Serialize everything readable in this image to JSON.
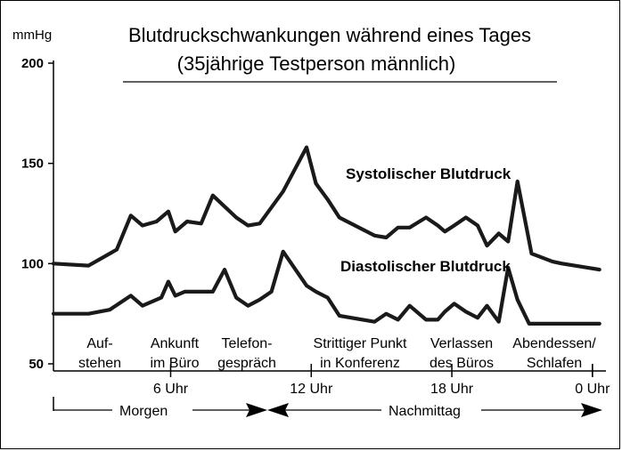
{
  "chart_data": {
    "type": "line",
    "title": "Blutdruckschwankungen während eines Tages",
    "subtitle": "(35jährige Testperson männlich)",
    "ylabel": "mmHg",
    "ylim": [
      50,
      200
    ],
    "yticks": [
      50,
      100,
      150,
      200
    ],
    "yticklabels": [
      "50",
      "100",
      "150",
      "200"
    ],
    "xlim": [
      1.0,
      24.5
    ],
    "xticks": [
      6,
      12,
      18,
      24
    ],
    "xticklabels": [
      "6 Uhr",
      "12 Uhr",
      "18 Uhr",
      "0 Uhr"
    ],
    "grid": false,
    "series": [
      {
        "name": "Systolischer Blutdruck",
        "color": "#1a1a1a",
        "x": [
          1.0,
          2.5,
          3.7,
          4.3,
          4.8,
          5.4,
          5.9,
          6.2,
          6.7,
          7.3,
          7.8,
          8.8,
          9.3,
          9.8,
          10.3,
          10.8,
          11.8,
          12.2,
          12.7,
          13.2,
          14.7,
          15.2,
          15.7,
          16.2,
          16.9,
          17.4,
          17.7,
          18.1,
          18.6,
          19.1,
          19.5,
          20.0,
          20.4,
          20.8,
          21.4,
          22.3,
          22.7,
          24.3
        ],
        "y": [
          100,
          99,
          107,
          124,
          119,
          121,
          126,
          116,
          121,
          120,
          134,
          123,
          119,
          120,
          128,
          136,
          158,
          140,
          132,
          123,
          114,
          113,
          118,
          118,
          123,
          119,
          116,
          119,
          123,
          119,
          109,
          115,
          111,
          141,
          105,
          101,
          100,
          97
        ]
      },
      {
        "name": "Diastolischer Blutdruck",
        "color": "#1a1a1a",
        "x": [
          1.0,
          2.5,
          3.4,
          4.3,
          4.8,
          5.6,
          5.9,
          6.2,
          6.6,
          7.2,
          7.8,
          8.3,
          8.8,
          9.3,
          9.8,
          10.3,
          10.8,
          11.8,
          12.2,
          12.7,
          13.2,
          14.7,
          15.2,
          15.7,
          16.2,
          16.9,
          17.4,
          17.7,
          18.1,
          18.6,
          19.1,
          19.5,
          20.0,
          20.4,
          20.8,
          21.3,
          22.3,
          22.7,
          24.3
        ],
        "y": [
          75,
          75,
          77,
          84,
          79,
          83,
          91,
          84,
          86,
          86,
          86,
          97,
          83,
          79,
          82,
          86,
          106,
          89,
          86,
          83,
          74,
          71,
          75,
          72,
          79,
          72,
          72,
          76,
          80,
          76,
          73,
          79,
          71,
          98,
          82,
          70,
          70,
          70,
          70
        ]
      }
    ],
    "events": [
      "Auf-\nstehen",
      "Ankunft\nim Büro",
      "Telefon-\ngespräch",
      "Strittiger Punkt\nin Konferenz",
      "Verlassen\ndes Büros",
      "Abendessen/\nSchlafen"
    ],
    "periods": [
      "Morgen",
      "Nachmittag"
    ]
  }
}
